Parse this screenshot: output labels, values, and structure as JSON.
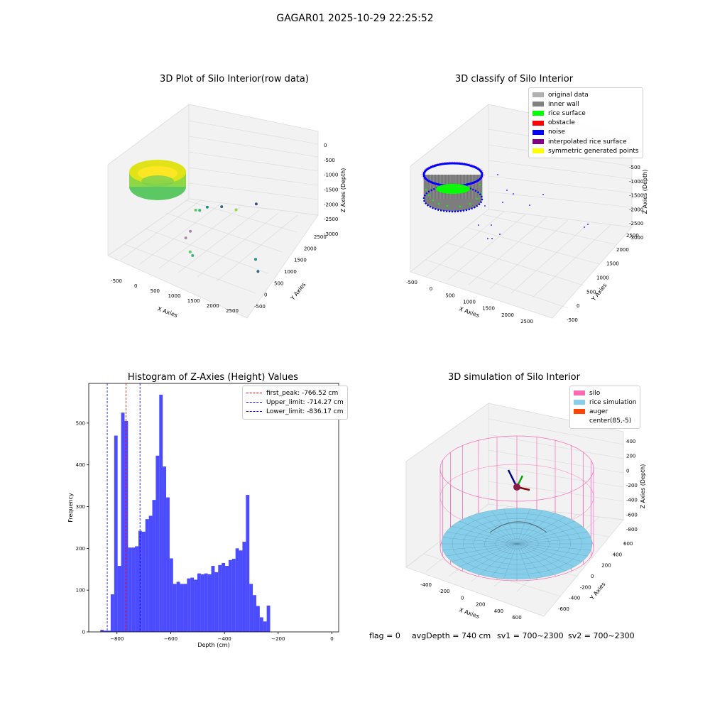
{
  "figure": {
    "suptitle": "GAGAR01 2025-10-29 22:25:52",
    "footer": {
      "flag": "flag = 0",
      "avg_depth": "avgDepth = 740 cm",
      "sv1": "sv1 = 700~2300",
      "sv2": "sv2 = 700~2300"
    }
  },
  "chart_data": [
    {
      "type": "scatter",
      "title": "3D Plot of Silo Interior(row data)",
      "xlabel": "X Axies",
      "ylabel": "Y Axies",
      "zlabel": "Z Axies (Depth)",
      "x_ticks": [
        "-500",
        "0",
        "500",
        "1000",
        "1500",
        "2000",
        "2500"
      ],
      "y_ticks": [
        "-500",
        "0",
        "500",
        "1000",
        "1500",
        "2000",
        "2500"
      ],
      "z_ticks": [
        "0",
        "-500",
        "-1000",
        "-1500",
        "-2000",
        "-2500",
        "-3000"
      ],
      "colormap": "viridis",
      "outliers": [
        {
          "x": 700,
          "y": 700,
          "z": -1450
        },
        {
          "x": 750,
          "y": 800,
          "z": -1500
        },
        {
          "x": 900,
          "y": 900,
          "z": -1380
        },
        {
          "x": 1150,
          "y": 1150,
          "z": -1400
        },
        {
          "x": 1400,
          "y": 1400,
          "z": -1550
        },
        {
          "x": 1750,
          "y": 1750,
          "z": -1400
        },
        {
          "x": 800,
          "y": 300,
          "z": -1900
        },
        {
          "x": 700,
          "y": 250,
          "z": -2150
        },
        {
          "x": 950,
          "y": 50,
          "z": -2400
        },
        {
          "x": 1050,
          "y": 0,
          "z": -2450
        },
        {
          "x": 2450,
          "y": 600,
          "z": -2300
        },
        {
          "x": 2550,
          "y": 550,
          "z": -2650
        }
      ]
    },
    {
      "type": "scatter",
      "title": "3D classify of Silo Interior",
      "xlabel": "X Axies",
      "ylabel": "Y Axies",
      "zlabel": "Z Axies (Depth)",
      "x_ticks": [
        "-500",
        "0",
        "500",
        "1000",
        "1500",
        "2000",
        "2500"
      ],
      "y_ticks": [
        "-500",
        "0",
        "500",
        "1000",
        "1500",
        "2000",
        "2500"
      ],
      "z_ticks": [
        "-500",
        "-1000",
        "-1500",
        "-2000",
        "-2500",
        "-3000"
      ],
      "legend": {
        "position": "upper right",
        "entries": [
          {
            "label": "original data",
            "color": "#b0b0b0"
          },
          {
            "label": "inner wall",
            "color": "#808080"
          },
          {
            "label": "rice surface",
            "color": "#00ff00"
          },
          {
            "label": "obstacle",
            "color": "#ff0000"
          },
          {
            "label": "noise",
            "color": "#0000ff"
          },
          {
            "label": "interpolated rice surface",
            "color": "#800080"
          },
          {
            "label": "symmetric generated points",
            "color": "#ffff00"
          }
        ]
      }
    },
    {
      "type": "bar",
      "title": "Histogram of Z-Axies (Height) Values",
      "xlabel": "Depth (cm)",
      "ylabel": "Frequency",
      "bar_color": "#0000ff",
      "bar_opacity": 0.7,
      "xlim": [
        -905,
        25
      ],
      "ylim": [
        0,
        595
      ],
      "x_ticks": [
        -800,
        -600,
        -400,
        -200,
        0
      ],
      "y_ticks": [
        0,
        100,
        200,
        300,
        400,
        500
      ],
      "bin_start": -862,
      "bin_width": 12.9,
      "values": [
        5,
        3,
        3,
        90,
        470,
        158,
        525,
        505,
        202,
        202,
        205,
        242,
        240,
        270,
        278,
        316,
        422,
        568,
        396,
        322,
        176,
        115,
        120,
        115,
        115,
        128,
        130,
        125,
        140,
        138,
        140,
        138,
        158,
        143,
        160,
        165,
        158,
        172,
        175,
        200,
        195,
        216,
        328,
        115,
        88,
        62,
        35,
        25,
        63
      ],
      "vlines": [
        {
          "label": "first_peak: -766.52 cm",
          "x": -766.52,
          "color": "#ff0000"
        },
        {
          "label": "Upper_limit: -714.27 cm",
          "x": -714.27,
          "color": "#0000ff"
        },
        {
          "label": "Lower_limit: -836.17 cm",
          "x": -836.17,
          "color": "#0000ff"
        }
      ],
      "legend": {
        "position": "upper right"
      }
    },
    {
      "type": "surface",
      "title": "3D simulation of Silo Interior",
      "xlabel": "X Axies",
      "ylabel": "Y Axies",
      "zlabel": "Z Axies (Depth)",
      "x_ticks": [
        "-400",
        "-200",
        "0",
        "200",
        "400",
        "600"
      ],
      "y_ticks": [
        "-600",
        "-400",
        "-200",
        "0",
        "200",
        "400",
        "600"
      ],
      "z_ticks": [
        "400",
        "200",
        "0",
        "-200",
        "-400",
        "-600",
        "-800"
      ],
      "legend": {
        "position": "upper right",
        "entries": [
          {
            "label": "silo",
            "color": "#ff69b4"
          },
          {
            "label": "rice simulation",
            "color": "#87ceeb"
          },
          {
            "label": "auger",
            "color": "#ff4500"
          },
          {
            "label": "center(85,-5)",
            "color": "#ffffff"
          }
        ]
      }
    }
  ]
}
